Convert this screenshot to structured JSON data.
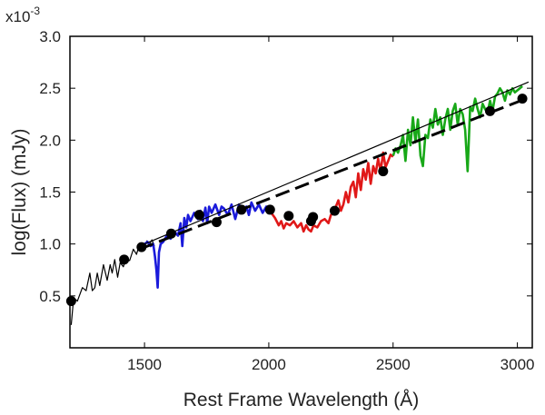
{
  "chart_data": {
    "type": "line",
    "title": "",
    "xlabel": "Rest Frame Wavelength (Å)",
    "ylabel": "log(Flux) (mJy)",
    "y_multiplier_base": "x10",
    "y_multiplier_exp": "-3",
    "xlim": [
      1200,
      3060
    ],
    "ylim": [
      0,
      3.0
    ],
    "x_ticks": [
      1500,
      2000,
      2500,
      3000
    ],
    "x_tick_labels": [
      "1500",
      "2000",
      "2500",
      "3000"
    ],
    "y_ticks": [
      0.5,
      1.0,
      1.5,
      2.0,
      2.5,
      3.0
    ],
    "y_tick_labels": [
      "0.5",
      "1.0",
      "1.5",
      "2.0",
      "2.5",
      "3.0"
    ],
    "grid": false,
    "series": [
      {
        "name": "spectrum-black",
        "color": "#000000",
        "style": "solid",
        "x": [
          1205,
          1215,
          1230,
          1250,
          1265,
          1280,
          1290,
          1300,
          1310,
          1320,
          1335,
          1350,
          1362,
          1370,
          1380,
          1392,
          1402,
          1415,
          1425,
          1440,
          1455,
          1468,
          1480,
          1490,
          1500,
          1510,
          1520,
          1530,
          1540
        ],
        "y": [
          0.22,
          0.48,
          0.45,
          0.58,
          0.55,
          0.72,
          0.55,
          0.58,
          0.72,
          0.6,
          0.8,
          0.65,
          0.8,
          0.72,
          0.85,
          0.68,
          0.82,
          0.78,
          0.86,
          0.84,
          0.95,
          0.9,
          1.0,
          0.94,
          0.97,
          1.03,
          1.0,
          1.04,
          0.98
        ]
      },
      {
        "name": "spectrum-blue",
        "color": "#1a1adb",
        "style": "solid",
        "x": [
          1500,
          1512,
          1525,
          1535,
          1542,
          1548,
          1553,
          1558,
          1565,
          1575,
          1590,
          1605,
          1620,
          1635,
          1645,
          1652,
          1660,
          1668,
          1675,
          1685,
          1700,
          1715,
          1725,
          1735,
          1745,
          1752,
          1760,
          1770,
          1785,
          1800,
          1810,
          1820,
          1835,
          1850,
          1865,
          1880,
          1895,
          1910,
          1920,
          1930,
          1945,
          1960,
          1975,
          1990,
          2000
        ],
        "y": [
          1.0,
          1.02,
          0.98,
          1.0,
          0.88,
          0.75,
          0.58,
          0.92,
          1.0,
          1.02,
          1.08,
          1.05,
          1.12,
          1.08,
          1.2,
          0.98,
          1.25,
          1.16,
          1.28,
          1.22,
          1.3,
          1.24,
          1.32,
          1.22,
          1.35,
          1.2,
          1.36,
          1.3,
          1.38,
          1.28,
          1.36,
          1.34,
          1.28,
          1.38,
          1.24,
          1.38,
          1.3,
          1.36,
          1.28,
          1.4,
          1.32,
          1.38,
          1.3,
          1.36,
          1.32
        ]
      },
      {
        "name": "spectrum-red",
        "color": "#e01818",
        "style": "solid",
        "x": [
          1995,
          2010,
          2025,
          2040,
          2050,
          2060,
          2070,
          2085,
          2100,
          2115,
          2130,
          2140,
          2150,
          2160,
          2170,
          2180,
          2195,
          2210,
          2225,
          2240,
          2250,
          2260,
          2270,
          2280,
          2290,
          2300,
          2310,
          2320,
          2330,
          2340,
          2350,
          2360,
          2370,
          2380,
          2390,
          2400,
          2410,
          2420,
          2430,
          2440,
          2450,
          2460,
          2470,
          2480,
          2490,
          2500
        ],
        "y": [
          1.35,
          1.3,
          1.25,
          1.18,
          1.22,
          1.15,
          1.2,
          1.18,
          1.22,
          1.16,
          1.2,
          1.12,
          1.18,
          1.14,
          1.12,
          1.18,
          1.16,
          1.22,
          1.24,
          1.2,
          1.28,
          1.3,
          1.36,
          1.42,
          1.32,
          1.38,
          1.5,
          1.4,
          1.55,
          1.6,
          1.45,
          1.68,
          1.52,
          1.72,
          1.62,
          1.78,
          1.58,
          1.75,
          1.68,
          1.82,
          1.7,
          1.88,
          1.74,
          1.8,
          1.86,
          1.84
        ]
      },
      {
        "name": "spectrum-green",
        "color": "#18a818",
        "style": "solid",
        "x": [
          2500,
          2510,
          2520,
          2530,
          2540,
          2550,
          2560,
          2570,
          2580,
          2590,
          2600,
          2610,
          2620,
          2630,
          2640,
          2650,
          2660,
          2670,
          2680,
          2690,
          2700,
          2710,
          2720,
          2730,
          2740,
          2750,
          2760,
          2770,
          2780,
          2790,
          2800,
          2810,
          2820,
          2830,
          2840,
          2850,
          2860,
          2870,
          2880,
          2890,
          2900,
          2910,
          2920,
          2930,
          2940,
          2950,
          2960,
          2970,
          2980,
          2990,
          3000,
          3010,
          3020
        ],
        "y": [
          1.85,
          1.92,
          1.88,
          1.95,
          2.05,
          1.8,
          2.1,
          1.95,
          2.22,
          1.98,
          2.2,
          1.85,
          1.75,
          2.05,
          2.02,
          2.2,
          2.12,
          2.3,
          2.15,
          2.22,
          2.05,
          2.2,
          2.3,
          2.1,
          2.28,
          2.35,
          2.15,
          2.3,
          2.25,
          2.1,
          1.7,
          2.32,
          2.28,
          2.4,
          2.3,
          2.22,
          2.35,
          2.3,
          2.26,
          2.38,
          2.28,
          2.42,
          2.45,
          2.5,
          2.46,
          2.38,
          2.48,
          2.44,
          2.5,
          2.46,
          2.48,
          2.5,
          2.52
        ]
      },
      {
        "name": "model-thin",
        "color": "#000000",
        "style": "solid-thin",
        "x": [
          1500,
          3045
        ],
        "y": [
          1.0,
          2.56
        ]
      },
      {
        "name": "model-dashed",
        "color": "#000000",
        "style": "dashed",
        "x": [
          1480,
          3035
        ],
        "y": [
          0.95,
          2.4
        ]
      }
    ],
    "points": {
      "name": "photometry",
      "color": "#000000",
      "x": [
        1205,
        1418,
        1488,
        1607,
        1720,
        1790,
        1890,
        2005,
        2080,
        2170,
        2178,
        2265,
        2460,
        2890,
        3020
      ],
      "y": [
        0.45,
        0.85,
        0.97,
        1.1,
        1.28,
        1.21,
        1.33,
        1.33,
        1.27,
        1.22,
        1.26,
        1.32,
        1.7,
        2.28,
        2.4
      ]
    }
  }
}
